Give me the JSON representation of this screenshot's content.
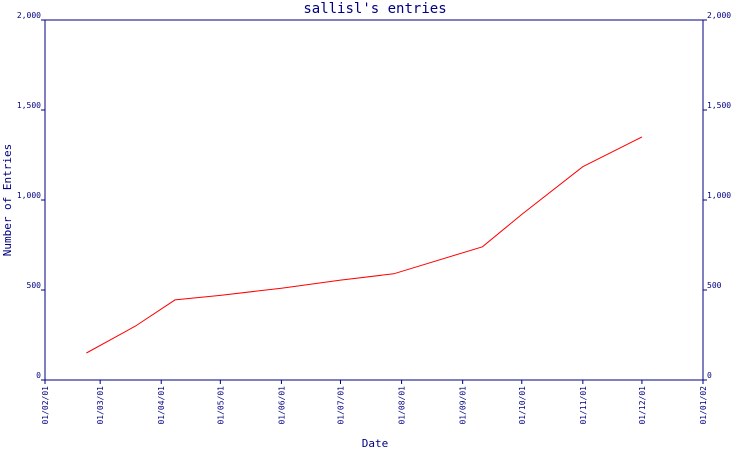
{
  "chart_data": {
    "type": "line",
    "title": "sallisl's entries",
    "xlabel": "Date",
    "ylabel": "Number of Entries",
    "x_ticks": [
      "01/02/01",
      "01/03/01",
      "01/04/01",
      "01/05/01",
      "01/06/01",
      "01/07/01",
      "01/08/01",
      "01/09/01",
      "01/10/01",
      "01/11/01",
      "01/12/01",
      "01/01/02"
    ],
    "ylim": [
      0,
      2000
    ],
    "y_ticks": [
      "0",
      "500",
      "1,000",
      "1,500",
      "2,000"
    ],
    "y_tick_values": [
      0,
      500,
      1000,
      1500,
      2000
    ],
    "grid": false,
    "series": [
      {
        "color": "#ff0000",
        "points": [
          {
            "x": "2001-02-22",
            "y": 150
          },
          {
            "x": "2001-03-19",
            "y": 300
          },
          {
            "x": "2001-04-08",
            "y": 445
          },
          {
            "x": "2001-05-01",
            "y": 470
          },
          {
            "x": "2001-06-01",
            "y": 510
          },
          {
            "x": "2001-07-01",
            "y": 555
          },
          {
            "x": "2001-07-28",
            "y": 590
          },
          {
            "x": "2001-09-11",
            "y": 740
          },
          {
            "x": "2001-10-01",
            "y": 920
          },
          {
            "x": "2001-11-01",
            "y": 1185
          },
          {
            "x": "2001-12-01",
            "y": 1350
          }
        ]
      }
    ],
    "colors": {
      "axis": "#000080",
      "text": "#000080",
      "line": "#ff0000"
    }
  }
}
